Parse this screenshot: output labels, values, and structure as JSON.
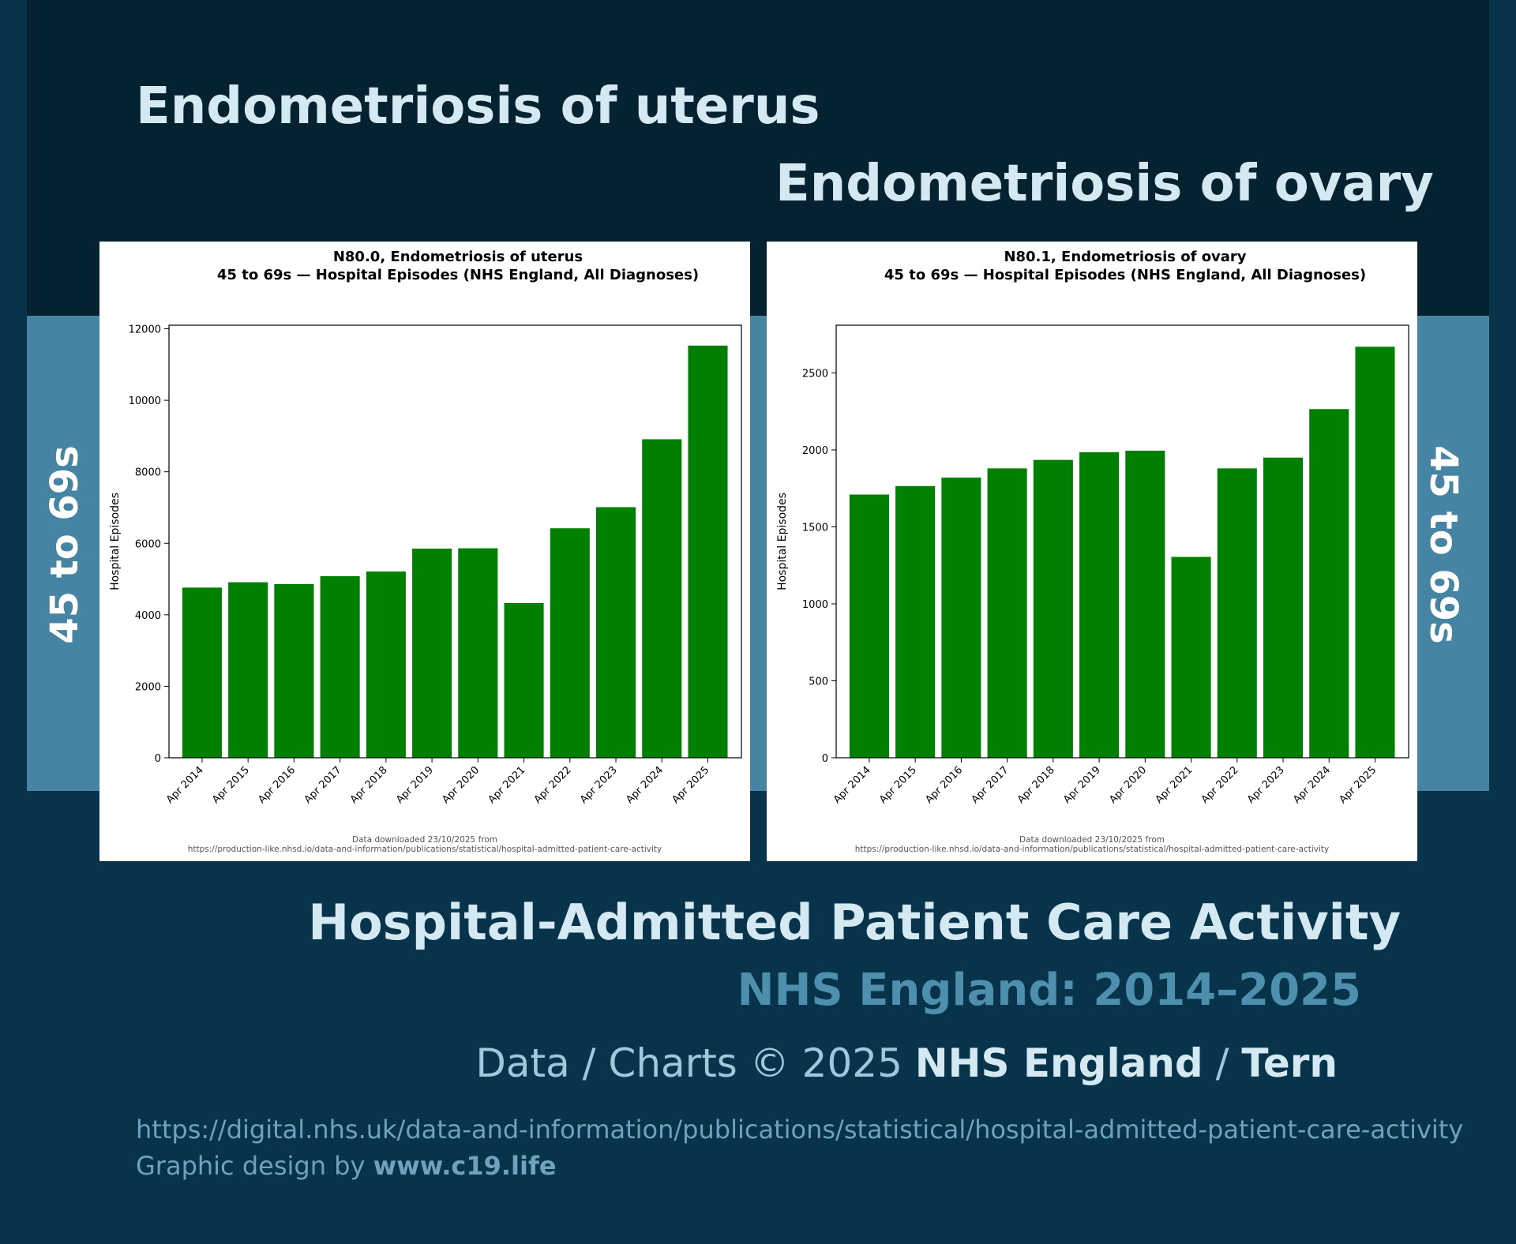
{
  "headings": {
    "left": "Endometriosis of uterus",
    "right": "Endometriosis of ovary"
  },
  "side_labels": {
    "left": "45 to 69s",
    "right": "45 to 69s"
  },
  "footer": {
    "main_title": "Hospital-Admitted Patient Care Activity",
    "subtitle": "NHS England: 2014–2025",
    "credit_prefix": "Data / Charts © 2025 ",
    "credit_org": "NHS England",
    "credit_sep": " / ",
    "credit_author": "Tern",
    "url": "https://digital.nhs.uk/data-and-information/publications/statistical/hospital-admitted-patient-care-activity",
    "design_prefix": "Graphic design by ",
    "design_site": "www.c19.life"
  },
  "colors": {
    "bar": "#008000",
    "background": "#07344b",
    "band_dark": "#04222f",
    "band_light": "#4585a3"
  },
  "chart_data": [
    {
      "type": "bar",
      "title_line1": "N80.0, Endometriosis of uterus",
      "title_line2": "45 to 69s — Hospital Episodes (NHS England, All Diagnoses)",
      "xlabel": "",
      "ylabel": "Hospital Episodes",
      "categories": [
        "Apr 2014",
        "Apr 2015",
        "Apr 2016",
        "Apr 2017",
        "Apr 2018",
        "Apr 2019",
        "Apr 2020",
        "Apr 2021",
        "Apr 2022",
        "Apr 2023",
        "Apr 2024",
        "Apr 2025"
      ],
      "values": [
        4760,
        4910,
        4860,
        5080,
        5210,
        5850,
        5860,
        4330,
        6420,
        7010,
        8910,
        11530
      ],
      "ylim": [
        0,
        12100
      ],
      "yticks": [
        0,
        2000,
        4000,
        6000,
        8000,
        10000,
        12000
      ],
      "source_line1": "Data downloaded 23/10/2025 from",
      "source_line2": "https://production-like.nhsd.io/data-and-information/publications/statistical/hospital-admitted-patient-care-activity"
    },
    {
      "type": "bar",
      "title_line1": "N80.1, Endometriosis of ovary",
      "title_line2": "45 to 69s — Hospital Episodes (NHS England, All Diagnoses)",
      "xlabel": "",
      "ylabel": "Hospital Episodes",
      "categories": [
        "Apr 2014",
        "Apr 2015",
        "Apr 2016",
        "Apr 2017",
        "Apr 2018",
        "Apr 2019",
        "Apr 2020",
        "Apr 2021",
        "Apr 2022",
        "Apr 2023",
        "Apr 2024",
        "Apr 2025"
      ],
      "values": [
        1710,
        1765,
        1820,
        1880,
        1935,
        1985,
        1995,
        1305,
        1880,
        1950,
        2265,
        2670
      ],
      "ylim": [
        0,
        2810
      ],
      "yticks": [
        0,
        500,
        1000,
        1500,
        2000,
        2500
      ],
      "source_line1": "Data downloaded 23/10/2025 from",
      "source_line2": "https://production-like.nhsd.io/data-and-information/publications/statistical/hospital-admitted-patient-care-activity"
    }
  ]
}
